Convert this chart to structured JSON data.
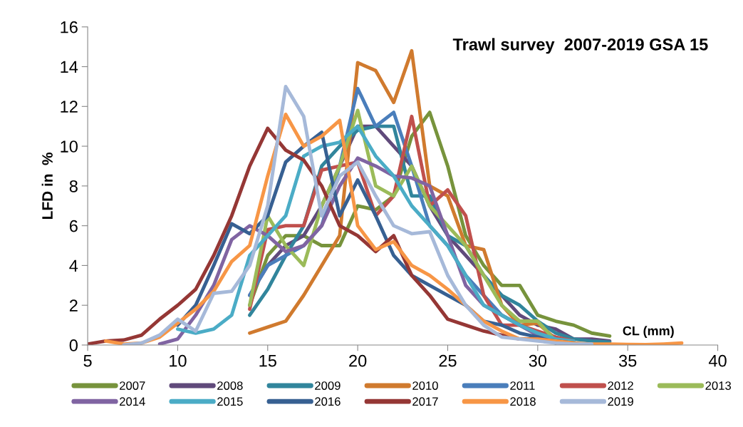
{
  "chart_data": {
    "type": "line",
    "title": "Trawl survey  2007-2019 GSA 15",
    "xlabel": "CL (mm)",
    "ylabel": "LFD in  %",
    "xlim": [
      5,
      40
    ],
    "xticks": [
      5,
      10,
      15,
      20,
      25,
      30,
      35,
      40
    ],
    "ylim": [
      0,
      16
    ],
    "yticks": [
      0,
      2,
      4,
      6,
      8,
      10,
      12,
      14,
      16
    ],
    "grid": false,
    "legend": "bottom",
    "marker": "none",
    "line_style": "solid",
    "series": [
      {
        "name": "2007",
        "color": "#77933c",
        "x": [
          14,
          15,
          16,
          17,
          18,
          19,
          20,
          21,
          22,
          23,
          24,
          25,
          26,
          27,
          28,
          29,
          30,
          31,
          32,
          33,
          34
        ],
        "values": [
          2,
          4.5,
          5.5,
          5.5,
          5,
          5,
          7,
          6.8,
          7.5,
          10.5,
          11.7,
          9,
          5.5,
          4,
          3,
          3,
          1.5,
          1.2,
          1,
          0.6,
          0.45
        ]
      },
      {
        "name": "2008",
        "color": "#604a7b",
        "x": [
          14,
          15,
          16,
          17,
          18,
          19,
          20,
          21,
          22,
          23,
          24,
          25,
          26,
          27,
          28,
          29,
          30,
          31,
          32,
          33,
          34
        ],
        "values": [
          2.5,
          4,
          5,
          5.5,
          7,
          9,
          11,
          11,
          10,
          9,
          7,
          5.5,
          4.5,
          3.5,
          2.5,
          1.5,
          1,
          0.8,
          0.3,
          0.3,
          0.2
        ]
      },
      {
        "name": "2009",
        "color": "#31859c",
        "x": [
          14,
          15,
          16,
          17,
          18,
          19,
          20,
          21,
          22,
          23,
          24,
          25,
          26,
          27,
          28,
          29,
          30,
          31,
          32,
          33,
          34
        ],
        "values": [
          1.5,
          2.8,
          4.5,
          6,
          9,
          10,
          10.8,
          11,
          11,
          7.5,
          7.5,
          5.5,
          5,
          3.5,
          2.5,
          2,
          1.2,
          0.6,
          0.3,
          0.2,
          0.15
        ]
      },
      {
        "name": "2010",
        "color": "#d07a2e",
        "x": [
          14,
          15,
          16,
          17,
          18,
          19,
          20,
          21,
          22,
          23,
          24,
          25,
          26,
          27,
          28,
          29,
          30,
          31
        ],
        "values": [
          0.6,
          0.9,
          1.2,
          2.5,
          4,
          5.5,
          14.2,
          13.8,
          12.2,
          14.8,
          8,
          7.5,
          5,
          4.8,
          2,
          1,
          1.1,
          0.3
        ]
      },
      {
        "name": "2011",
        "color": "#4a7ebb",
        "x": [
          14,
          15,
          16,
          17,
          18,
          19,
          20,
          21,
          22,
          23,
          24,
          25,
          26,
          27,
          28,
          29,
          30,
          31,
          32
        ],
        "values": [
          2.5,
          4,
          4.5,
          5,
          6,
          9,
          12.9,
          11,
          11.7,
          9,
          6,
          5,
          3.5,
          2.5,
          1.5,
          1,
          0.5,
          0.3,
          0.2
        ]
      },
      {
        "name": "2012",
        "color": "#c0504d",
        "x": [
          14,
          15,
          16,
          17,
          18,
          19,
          20,
          21,
          22,
          23,
          24,
          25,
          26,
          27,
          28,
          29,
          30,
          31,
          32
        ],
        "values": [
          1.8,
          5.8,
          6,
          6,
          8.8,
          9,
          9.2,
          6.5,
          7.5,
          11.5,
          7,
          7.8,
          6.5,
          2.5,
          1,
          1,
          0.7,
          0.4,
          0.2
        ]
      },
      {
        "name": "2013",
        "color": "#9bbb59",
        "x": [
          14,
          15,
          16,
          17,
          18,
          19,
          20,
          21,
          22,
          23,
          24,
          25,
          26,
          27,
          28,
          29,
          30,
          31
        ],
        "values": [
          2,
          6.5,
          5,
          4,
          7,
          9,
          11.8,
          8,
          7.5,
          9,
          7,
          6,
          5,
          3.5,
          2,
          1.2,
          1.2,
          0.2
        ]
      },
      {
        "name": "2014",
        "color": "#8064a2",
        "x": [
          9,
          10,
          11,
          12,
          13,
          14,
          15,
          16,
          17,
          18,
          19,
          20,
          21,
          22,
          23,
          24,
          25,
          26,
          27,
          28,
          29,
          30,
          31
        ],
        "values": [
          0.05,
          0.3,
          1.5,
          3,
          5.3,
          6,
          5.5,
          4.7,
          5,
          6,
          8,
          9.4,
          9,
          8.5,
          8.4,
          8,
          5.5,
          3,
          2,
          1.5,
          1,
          0.5,
          0.3
        ]
      },
      {
        "name": "2015",
        "color": "#4bacc6",
        "x": [
          10,
          11,
          12,
          13,
          14,
          15,
          16,
          17,
          18,
          19,
          20,
          21,
          22,
          23,
          24,
          25,
          26,
          27,
          28,
          29,
          30,
          31,
          32
        ],
        "values": [
          0.8,
          0.6,
          0.8,
          1.5,
          4.5,
          5.5,
          6.5,
          9.5,
          10,
          10.2,
          11,
          9.5,
          8.5,
          7,
          6,
          5,
          3.5,
          2,
          1.5,
          1,
          0.6,
          0.3,
          0.2
        ]
      },
      {
        "name": "2016",
        "color": "#376092",
        "x": [
          10,
          11,
          12,
          13,
          14,
          15,
          16,
          17,
          18,
          19,
          20,
          21,
          22,
          23,
          24,
          25,
          26,
          27,
          28,
          29,
          30,
          31
        ],
        "values": [
          1,
          2,
          4,
          6.1,
          5.6,
          6.5,
          9.2,
          10,
          10.7,
          6.5,
          8.3,
          6.5,
          4.5,
          3.5,
          3,
          2.5,
          2,
          1.2,
          1,
          0.6,
          0.4,
          0.1
        ]
      },
      {
        "name": "2017",
        "color": "#953735",
        "x": [
          5,
          6,
          7,
          8,
          9,
          10,
          11,
          12,
          13,
          14,
          15,
          16,
          17,
          18,
          19,
          20,
          21,
          22,
          23,
          24,
          25,
          26,
          27,
          28,
          29,
          30,
          31,
          32
        ],
        "values": [
          0.05,
          0.2,
          0.25,
          0.5,
          1.3,
          2,
          2.8,
          4.5,
          6.5,
          9,
          10.9,
          9.8,
          9.3,
          8,
          6,
          5.5,
          4.7,
          5.5,
          3.5,
          2.5,
          1.3,
          1,
          0.7,
          0.5,
          0.3,
          0.3,
          0.2,
          0.1
        ]
      },
      {
        "name": "2018",
        "color": "#f79646",
        "x": [
          6,
          7,
          8,
          9,
          10,
          11,
          12,
          13,
          14,
          15,
          16,
          17,
          18,
          19,
          20,
          21,
          22,
          23,
          24,
          25,
          26,
          27,
          28,
          29,
          30,
          31,
          32,
          33,
          34,
          35,
          36,
          37,
          38
        ],
        "values": [
          0.2,
          0.05,
          0.1,
          0.4,
          1.1,
          1.8,
          2.7,
          4.2,
          5,
          8.5,
          11.6,
          10,
          10.5,
          11.3,
          6,
          4.8,
          5.2,
          4,
          3.5,
          2.8,
          2,
          1.2,
          0.7,
          0.3,
          0.3,
          0.2,
          0.1,
          0.05,
          0.05,
          0.03,
          0.02,
          0.05,
          0.1
        ]
      },
      {
        "name": "2019",
        "color": "#a6b9d9",
        "x": [
          7,
          8,
          9,
          10,
          11,
          12,
          13,
          14,
          15,
          16,
          17,
          18,
          19,
          20,
          21,
          22,
          23,
          24,
          25,
          26,
          27,
          28,
          29,
          30,
          31,
          32,
          33
        ],
        "values": [
          0,
          0.1,
          0.5,
          1.3,
          0.7,
          2.6,
          2.7,
          4,
          7,
          13,
          11.5,
          6.5,
          8.5,
          9.2,
          7.5,
          6,
          5.6,
          5.7,
          3.5,
          2,
          1,
          0.4,
          0.3,
          0.2,
          0.1,
          0.05,
          0.05
        ]
      }
    ]
  }
}
